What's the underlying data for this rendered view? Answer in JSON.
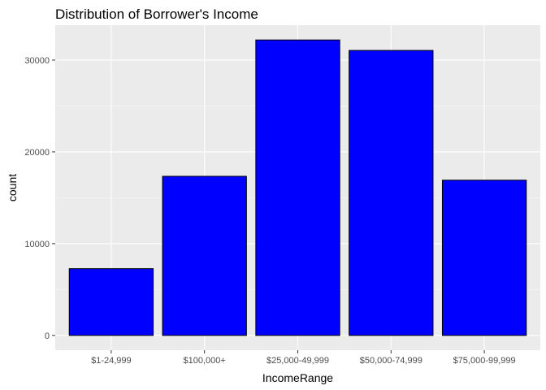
{
  "chart_data": {
    "type": "bar",
    "title": "Distribution of Borrower's Income",
    "xlabel": "IncomeRange",
    "ylabel": "count",
    "categories": [
      "$1-24,999",
      "$100,000+",
      "$25,000-49,999",
      "$50,000-74,999",
      "$75,000-99,999"
    ],
    "values": [
      7274,
      17337,
      32192,
      31050,
      16916
    ],
    "ylim": [
      0,
      33802
    ],
    "yticks": [
      0,
      10000,
      20000,
      30000
    ],
    "ytick_labels": [
      "0",
      "10000",
      "20000",
      "30000"
    ],
    "grid": true,
    "legend": "none",
    "colors": {
      "bar_fill": "#0000FF",
      "bar_stroke": "#000000",
      "panel_bg": "#EBEBEB",
      "grid_major": "#FFFFFF",
      "grid_minor": "#F5F5F5",
      "tick_label": "#4D4D4D"
    }
  }
}
